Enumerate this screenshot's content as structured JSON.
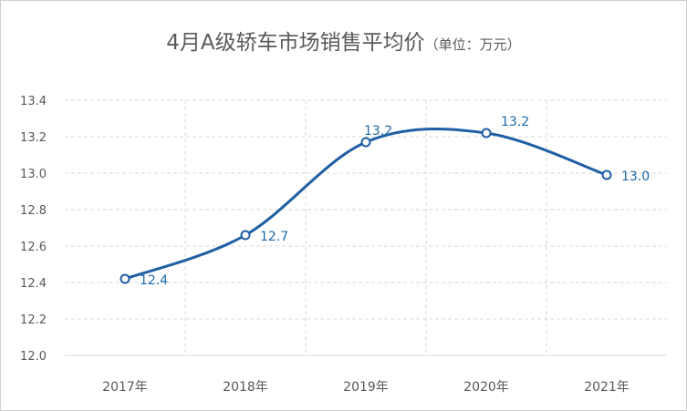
{
  "chart_data": {
    "type": "line",
    "title": "4月A级轿车市场销售平均价",
    "subtitle": "（单位：万元）",
    "categories": [
      "2017年",
      "2018年",
      "2019年",
      "2020年",
      "2021年"
    ],
    "series": [
      {
        "values": [
          12.42,
          12.66,
          13.17,
          13.22,
          12.99
        ],
        "labels": [
          "12.4",
          "12.7",
          "13.2",
          "13.2",
          "13.0"
        ]
      }
    ],
    "yticks": [
      "12.0",
      "12.2",
      "12.4",
      "12.6",
      "12.8",
      "13.0",
      "13.2",
      "13.4"
    ],
    "ylim": [
      12.0,
      13.4
    ],
    "smooth": true,
    "grid": true,
    "colors": {
      "line": "#1f5fa3",
      "label": "#1e6aa8",
      "grid": "#d9d9d9",
      "text": "#595959"
    }
  }
}
